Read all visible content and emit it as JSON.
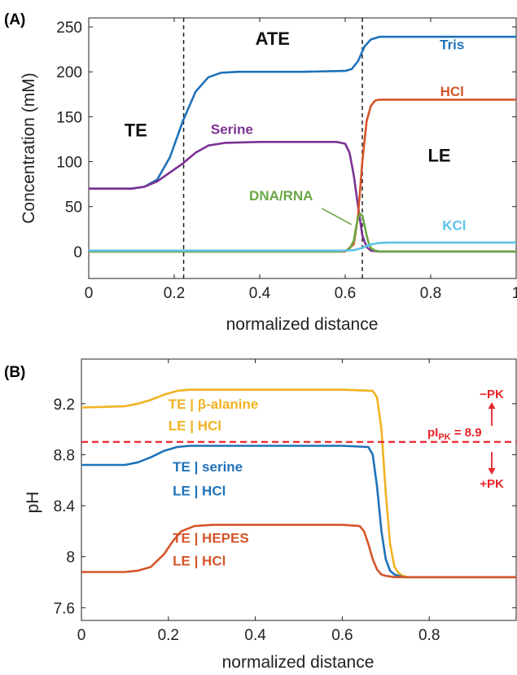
{
  "chart_data": [
    {
      "panel_label": "(A)",
      "type": "line",
      "xlabel": "normalized distance",
      "ylabel": "Concentration (mM)",
      "xlim": [
        0,
        1
      ],
      "ylim": [
        -30,
        260
      ],
      "xticks": [
        0,
        0.2,
        0.4,
        0.6,
        0.8,
        1
      ],
      "yticks": [
        0,
        50,
        100,
        150,
        200,
        250
      ],
      "xtick_labels": [
        "0",
        "0.2",
        "0.4",
        "0.6",
        "0.8",
        "1"
      ],
      "ytick_labels": [
        "0",
        "50",
        "100",
        "150",
        "200",
        "250"
      ],
      "grid": false,
      "vlines": [
        0.222,
        0.64
      ],
      "zone_labels": [
        {
          "text": "TE",
          "x": 0.11,
          "y": 128
        },
        {
          "text": "ATE",
          "x": 0.43,
          "y": 230
        },
        {
          "text": "LE",
          "x": 0.82,
          "y": 100
        }
      ],
      "series": [
        {
          "name": "Tris",
          "color": "#1f72b8",
          "x": [
            0,
            0.1,
            0.13,
            0.16,
            0.19,
            0.22,
            0.25,
            0.28,
            0.31,
            0.35,
            0.4,
            0.5,
            0.6,
            0.615,
            0.63,
            0.645,
            0.66,
            0.68,
            0.7,
            0.8,
            1.0
          ],
          "y": [
            70,
            70,
            72,
            80,
            105,
            145,
            178,
            194,
            199,
            200,
            200,
            200,
            201,
            203,
            212,
            228,
            236,
            239,
            239,
            239,
            239
          ]
        },
        {
          "name": "Serine",
          "color": "#7b3294",
          "x": [
            0,
            0.1,
            0.13,
            0.16,
            0.19,
            0.22,
            0.25,
            0.28,
            0.32,
            0.4,
            0.5,
            0.58,
            0.6,
            0.61,
            0.62,
            0.63,
            0.64,
            0.65,
            0.66,
            0.68,
            1.0
          ],
          "y": [
            70,
            70,
            72,
            78,
            88,
            98,
            110,
            118,
            121,
            122,
            122,
            122,
            120,
            110,
            85,
            50,
            18,
            5,
            1,
            0,
            0
          ]
        },
        {
          "name": "HCl",
          "color": "#d4552a",
          "x": [
            0,
            0.6,
            0.62,
            0.63,
            0.64,
            0.65,
            0.66,
            0.67,
            0.68,
            0.7,
            0.75,
            1.0
          ],
          "y": [
            0,
            0,
            8,
            40,
            100,
            145,
            162,
            168,
            169,
            169,
            169,
            169
          ]
        },
        {
          "name": "DNA/RNA",
          "color": "#6aa843",
          "x": [
            0,
            0.58,
            0.6,
            0.61,
            0.62,
            0.625,
            0.63,
            0.635,
            0.64,
            0.645,
            0.65,
            0.655,
            0.66,
            0.67,
            0.68,
            1.0
          ],
          "y": [
            0,
            0,
            1,
            3,
            12,
            26,
            38,
            42,
            40,
            30,
            18,
            9,
            4,
            1,
            0,
            0
          ]
        },
        {
          "name": "KCl",
          "color": "#5bc3e8",
          "x": [
            0,
            0.3,
            0.6,
            0.62,
            0.64,
            0.66,
            0.68,
            0.7,
            1.0
          ],
          "y": [
            1,
            1,
            1,
            1.5,
            4,
            8,
            9.5,
            10,
            10
          ]
        }
      ],
      "series_labels": [
        {
          "text": "Tris",
          "series": "Tris",
          "x": 0.85,
          "y": 225
        },
        {
          "text": "HCl",
          "series": "HCl",
          "x": 0.85,
          "y": 173
        },
        {
          "text": "Serine",
          "series": "Serine",
          "x": 0.335,
          "y": 131
        },
        {
          "text": "DNA/RNA",
          "series": "DNA/RNA",
          "x": 0.45,
          "y": 57
        },
        {
          "text": "KCl",
          "series": "KCl",
          "x": 0.855,
          "y": 24
        }
      ]
    },
    {
      "panel_label": "(B)",
      "type": "line",
      "xlabel": "normalized distance",
      "ylabel": "pH",
      "xlim": [
        0,
        1
      ],
      "ylim": [
        7.5,
        9.55
      ],
      "xticks": [
        0,
        0.2,
        0.4,
        0.6,
        0.8
      ],
      "yticks": [
        7.6,
        8,
        8.4,
        8.8,
        9.2
      ],
      "xtick_labels": [
        "0",
        "0.2",
        "0.4",
        "0.6",
        "0.8"
      ],
      "ytick_labels": [
        "7.6",
        "8",
        "8.4",
        "8.8",
        "9.2"
      ],
      "grid": false,
      "hline": {
        "y": 8.9,
        "color": "#e8252a",
        "label": "pI",
        "label_sub": "PK",
        "label_tail": " = 8.9"
      },
      "arrow_labels": {
        "up": "−PK",
        "down": "+PK",
        "color": "#e8252a"
      },
      "series": [
        {
          "name": "TE | β-alanine LE | HCl",
          "color": "#f0b323",
          "x": [
            0,
            0.1,
            0.13,
            0.16,
            0.19,
            0.22,
            0.25,
            0.3,
            0.4,
            0.6,
            0.67,
            0.68,
            0.69,
            0.7,
            0.71,
            0.72,
            0.73,
            0.74,
            0.75,
            0.8,
            1.0
          ],
          "y": [
            9.17,
            9.18,
            9.2,
            9.23,
            9.27,
            9.3,
            9.31,
            9.31,
            9.31,
            9.31,
            9.3,
            9.25,
            9.0,
            8.5,
            8.1,
            7.92,
            7.87,
            7.85,
            7.84,
            7.84,
            7.84
          ]
        },
        {
          "name": "TE | serine LE | HCl",
          "color": "#1f72b8",
          "x": [
            0,
            0.1,
            0.13,
            0.16,
            0.19,
            0.22,
            0.25,
            0.3,
            0.4,
            0.6,
            0.66,
            0.67,
            0.68,
            0.69,
            0.7,
            0.71,
            0.72,
            0.74,
            0.8,
            1.0
          ],
          "y": [
            8.72,
            8.72,
            8.74,
            8.78,
            8.83,
            8.86,
            8.87,
            8.87,
            8.87,
            8.87,
            8.86,
            8.8,
            8.55,
            8.2,
            7.98,
            7.89,
            7.86,
            7.84,
            7.84,
            7.84
          ]
        },
        {
          "name": "TE | HEPES LE | HCl",
          "color": "#d4552a",
          "x": [
            0,
            0.1,
            0.13,
            0.16,
            0.19,
            0.21,
            0.23,
            0.26,
            0.3,
            0.4,
            0.6,
            0.64,
            0.65,
            0.66,
            0.67,
            0.68,
            0.69,
            0.7,
            0.72,
            0.75,
            0.8,
            1.0
          ],
          "y": [
            7.88,
            7.88,
            7.89,
            7.92,
            8.02,
            8.12,
            8.2,
            8.24,
            8.25,
            8.25,
            8.25,
            8.24,
            8.2,
            8.1,
            7.98,
            7.9,
            7.86,
            7.85,
            7.84,
            7.84,
            7.84,
            7.84
          ]
        }
      ],
      "series_labels": [
        {
          "lines": [
            "TE | β-alanine",
            "LE | HCl"
          ],
          "series": "TE | β-alanine LE | HCl",
          "x": 0.2,
          "y": [
            9.16,
            8.99
          ]
        },
        {
          "lines": [
            "TE | serine",
            "LE | HCl"
          ],
          "series": "TE | serine LE | HCl",
          "x": 0.21,
          "y": [
            8.67,
            8.48
          ]
        },
        {
          "lines": [
            "TE | HEPES",
            "LE | HCl"
          ],
          "series": "TE | HEPES LE | HCl",
          "x": 0.21,
          "y": [
            8.11,
            7.93
          ]
        }
      ]
    }
  ]
}
